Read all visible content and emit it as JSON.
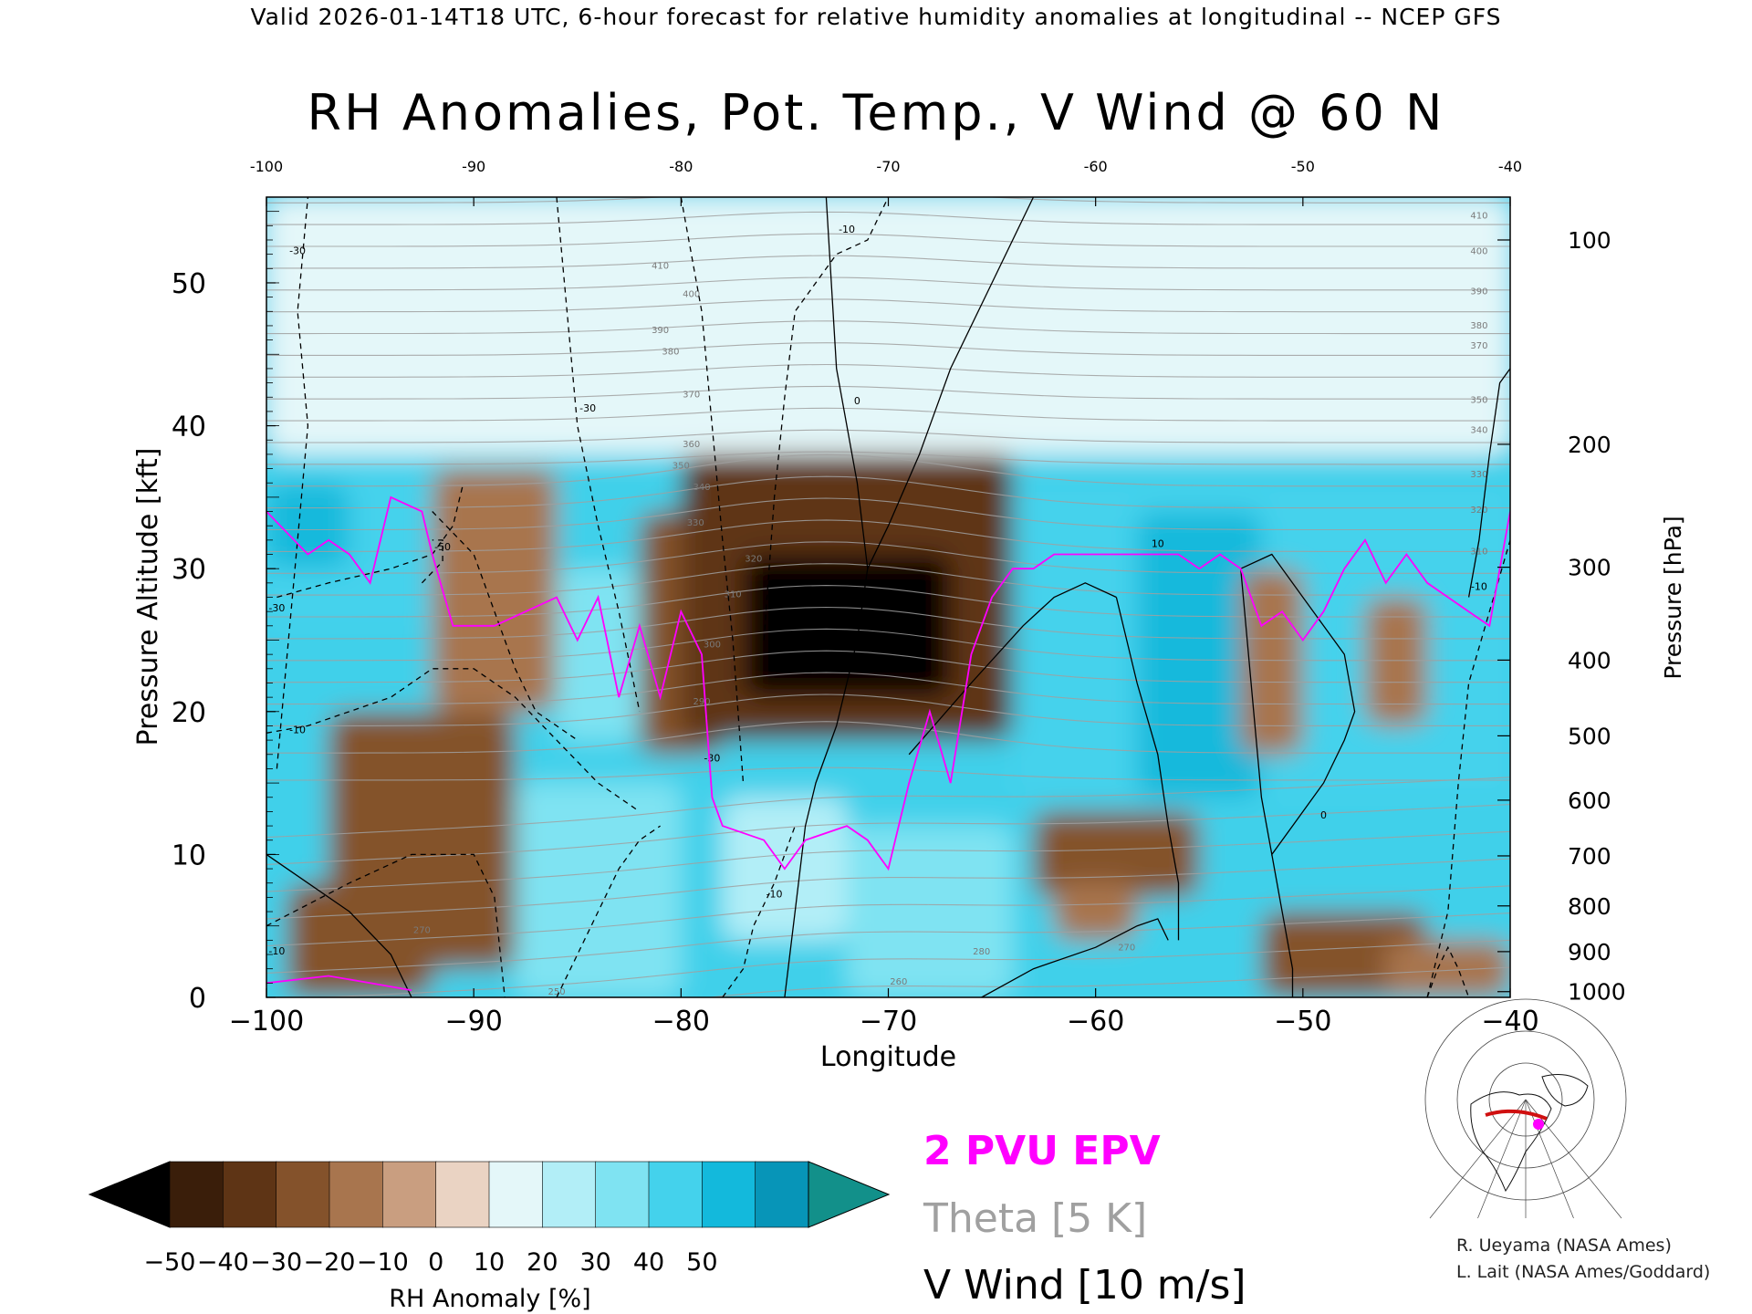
{
  "header": "Valid 2026-01-14T18 UTC, 6-hour forecast for relative humidity anomalies at longitudinal -- NCEP GFS",
  "chart_data": {
    "type": "heatmap",
    "title": "RH Anomalies, Pot. Temp., V Wind @ 60 N",
    "xlabel": "Longitude",
    "ylabel_left": "Pressure Altitude [kft]",
    "ylabel_right": "Pressure [hPa]",
    "xlim": [
      -100,
      -40
    ],
    "ylim": [
      0,
      56
    ],
    "x_ticks": [
      -100,
      -90,
      -80,
      -70,
      -60,
      -50,
      -40
    ],
    "x_tick_labels": [
      "−100",
      "−90",
      "−80",
      "−70",
      "−60",
      "−50",
      "−40"
    ],
    "top_tick_labels": [
      "-100",
      "-90",
      "-80",
      "-70",
      "-60",
      "-50",
      "-40"
    ],
    "y_ticks": [
      0,
      10,
      20,
      30,
      40,
      50
    ],
    "pressure_ticks": [
      {
        "label": "100",
        "alt": 53
      },
      {
        "label": "200",
        "alt": 38.7
      },
      {
        "label": "300",
        "alt": 30.1
      },
      {
        "label": "400",
        "alt": 23.6
      },
      {
        "label": "500",
        "alt": 18.3
      },
      {
        "label": "600",
        "alt": 13.8
      },
      {
        "label": "700",
        "alt": 9.9
      },
      {
        "label": "800",
        "alt": 6.4
      },
      {
        "label": "900",
        "alt": 3.2
      },
      {
        "label": "1000",
        "alt": 0.4
      }
    ],
    "colorbar": {
      "label": "RH Anomaly [%]",
      "tick_labels": [
        "−50",
        "−40",
        "−30",
        "−20",
        "−10",
        "0",
        "10",
        "20",
        "30",
        "40",
        "50"
      ],
      "colors": [
        "#3a1e0a",
        "#5e3415",
        "#84522b",
        "#a8754e",
        "#c99e80",
        "#ead3c3",
        "#e4f7f9",
        "#b2eef7",
        "#7fe3f2",
        "#44d2ec",
        "#13b9dc",
        "#0795b8"
      ],
      "under_color": "#000000",
      "over_color": "#12908a"
    },
    "legend": {
      "epv": "2 PVU EPV",
      "theta": "Theta [5 K]",
      "wind": "V Wind [10 m/s]",
      "epv_color": "#ff00ff",
      "theta_color": "#a0a0a0",
      "wind_color": "#000000"
    },
    "rh_regions": [
      {
        "x": [
          -100,
          -40
        ],
        "y": [
          38,
          56
        ],
        "value": 3
      },
      {
        "x": [
          -100,
          -92
        ],
        "y": [
          26,
          38
        ],
        "value": 30
      },
      {
        "x": [
          -100,
          -96
        ],
        "y": [
          30,
          36
        ],
        "value": 45
      },
      {
        "x": [
          -92,
          -86
        ],
        "y": [
          20,
          37
        ],
        "value": -15
      },
      {
        "x": [
          -86,
          -82
        ],
        "y": [
          18,
          30
        ],
        "value": 20
      },
      {
        "x": [
          -82,
          -78
        ],
        "y": [
          17,
          34
        ],
        "value": -25
      },
      {
        "x": [
          -80,
          -64
        ],
        "y": [
          18,
          38
        ],
        "value": -35
      },
      {
        "x": [
          -77,
          -67
        ],
        "y": [
          21,
          31
        ],
        "value": -55
      },
      {
        "x": [
          -97,
          -88
        ],
        "y": [
          2,
          20
        ],
        "value": -25
      },
      {
        "x": [
          -99,
          -92
        ],
        "y": [
          0,
          8
        ],
        "value": -30
      },
      {
        "x": [
          -88,
          -80
        ],
        "y": [
          0,
          15
        ],
        "value": 25
      },
      {
        "x": [
          -78,
          -72
        ],
        "y": [
          4,
          14
        ],
        "value": 15
      },
      {
        "x": [
          -72,
          -64
        ],
        "y": [
          0,
          12
        ],
        "value": 25
      },
      {
        "x": [
          -63,
          -55
        ],
        "y": [
          7,
          13
        ],
        "value": -25
      },
      {
        "x": [
          -62,
          -58
        ],
        "y": [
          4,
          8
        ],
        "value": -20
      },
      {
        "x": [
          -64,
          -40
        ],
        "y": [
          14,
          36
        ],
        "value": 35
      },
      {
        "x": [
          -58,
          -52
        ],
        "y": [
          14,
          34
        ],
        "value": 45
      },
      {
        "x": [
          -53,
          -50
        ],
        "y": [
          17,
          30
        ],
        "value": -15
      },
      {
        "x": [
          -47,
          -44
        ],
        "y": [
          19,
          28
        ],
        "value": -15
      },
      {
        "x": [
          -52,
          -44
        ],
        "y": [
          0,
          6
        ],
        "value": -25
      },
      {
        "x": [
          -46,
          -40
        ],
        "y": [
          0,
          4
        ],
        "value": -20
      }
    ],
    "epv_2pvu": {
      "x": [
        -100,
        -98,
        -97,
        -96,
        -95,
        -94,
        -92.5,
        -92,
        -91,
        -89,
        -86,
        -85,
        -84,
        -83,
        -82,
        -81,
        -80,
        -79,
        -78.5,
        -78,
        -76,
        -75,
        -74,
        -72,
        -71,
        -70,
        -69,
        -68,
        -67,
        -66,
        -65,
        -64,
        -63,
        -62,
        -60,
        -58,
        -56,
        -55,
        -54,
        -53,
        -52,
        -51,
        -50,
        -49,
        -48,
        -47,
        -46,
        -45,
        -44,
        -43,
        -42,
        -41,
        -40
      ],
      "y": [
        34,
        31,
        32,
        31,
        29,
        35,
        34,
        31,
        26,
        26,
        28,
        25,
        28,
        21,
        26,
        21,
        27,
        24,
        14,
        12,
        11,
        9,
        11,
        12,
        11,
        9,
        15,
        20,
        15,
        24,
        28,
        30,
        30,
        31,
        31,
        31,
        31,
        30,
        31,
        30,
        26,
        27,
        25,
        27,
        30,
        32,
        29,
        31,
        29,
        28,
        27,
        26,
        34
      ]
    },
    "epv_surface": {
      "x": [
        -100,
        -97,
        -95,
        -93
      ],
      "y": [
        1,
        1.5,
        1,
        0.5
      ]
    },
    "theta_levels": [
      250,
      255,
      260,
      265,
      270,
      275,
      280,
      285,
      290,
      295,
      300,
      305,
      310,
      315,
      320,
      325,
      330,
      335,
      340,
      345,
      350,
      355,
      360,
      365,
      370,
      375,
      380,
      385,
      390,
      395,
      400,
      405,
      410,
      415,
      420,
      425
    ],
    "theta_labels": [
      {
        "text": "410",
        "x": -41.5,
        "y": 54.5
      },
      {
        "text": "400",
        "x": -41.5,
        "y": 52
      },
      {
        "text": "390",
        "x": -41.5,
        "y": 49.2
      },
      {
        "text": "380",
        "x": -41.5,
        "y": 46.8
      },
      {
        "text": "370",
        "x": -41.5,
        "y": 45.4
      },
      {
        "text": "350",
        "x": -41.5,
        "y": 41.6
      },
      {
        "text": "340",
        "x": -41.5,
        "y": 39.5
      },
      {
        "text": "330",
        "x": -41.5,
        "y": 36.4
      },
      {
        "text": "320",
        "x": -41.5,
        "y": 33.9
      },
      {
        "text": "310",
        "x": -41.5,
        "y": 31
      },
      {
        "text": "410",
        "x": -81,
        "y": 51
      },
      {
        "text": "400",
        "x": -79.5,
        "y": 49
      },
      {
        "text": "390",
        "x": -81,
        "y": 46.5
      },
      {
        "text": "380",
        "x": -80.5,
        "y": 45
      },
      {
        "text": "370",
        "x": -79.5,
        "y": 42
      },
      {
        "text": "360",
        "x": -79.5,
        "y": 38.5
      },
      {
        "text": "350",
        "x": -80,
        "y": 37
      },
      {
        "text": "340",
        "x": -79,
        "y": 35.5
      },
      {
        "text": "330",
        "x": -79.3,
        "y": 33
      },
      {
        "text": "320",
        "x": -76.5,
        "y": 30.5
      },
      {
        "text": "310",
        "x": -77.5,
        "y": 28
      },
      {
        "text": "300",
        "x": -78.5,
        "y": 24.5
      },
      {
        "text": "290",
        "x": -79,
        "y": 20.5
      },
      {
        "text": "280",
        "x": -65.5,
        "y": 3
      },
      {
        "text": "270",
        "x": -92.5,
        "y": 4.5
      },
      {
        "text": "270",
        "x": -58.5,
        "y": 3.3
      },
      {
        "text": "260",
        "x": -69.5,
        "y": 0.9
      },
      {
        "text": "250",
        "x": -86,
        "y": 0.2
      }
    ],
    "wind_contours": [
      {
        "value": "0",
        "style": "solid",
        "x": [
          -75,
          -74.5,
          -74,
          -73.5,
          -72.5,
          -71.5,
          -71,
          -71.5,
          -72.5,
          -73
        ],
        "y": [
          0,
          6,
          12,
          15,
          19,
          25,
          30,
          36,
          44,
          56
        ],
        "label": {
          "x": -71.5,
          "y": 41.5
        }
      },
      {
        "value": "0",
        "style": "solid",
        "x": [
          -71,
          -70,
          -68.5,
          -67,
          -65,
          -63
        ],
        "y": [
          30,
          33,
          38,
          44,
          50,
          56
        ]
      },
      {
        "value": "10",
        "style": "solid",
        "x": [
          -69,
          -66,
          -63.5,
          -62,
          -60.5,
          -59
        ],
        "y": [
          17,
          22,
          26,
          28,
          29,
          28
        ]
      },
      {
        "value": "10",
        "style": "solid",
        "x": [
          -59,
          -58,
          -57,
          -56.5,
          -56,
          -56
        ],
        "y": [
          28,
          22,
          17,
          12,
          8,
          4
        ],
        "label": {
          "x": -57,
          "y": 31.5
        }
      },
      {
        "value": "0",
        "style": "solid",
        "x": [
          -53,
          -51.5,
          -50,
          -49,
          -48,
          -47.5,
          -48,
          -49,
          -50.5,
          -51.5,
          -52,
          -53
        ],
        "y": [
          30,
          31,
          28,
          26,
          24,
          20,
          18,
          15,
          12,
          10,
          14,
          30
        ],
        "label": {
          "x": -49,
          "y": 12.5
        }
      },
      {
        "value": "0",
        "style": "solid",
        "x": [
          -51.5,
          -51,
          -50.5,
          -50.5
        ],
        "y": [
          10,
          6,
          2,
          0
        ]
      },
      {
        "value": "0",
        "style": "solid",
        "x": [
          -65.5,
          -63,
          -60,
          -58,
          -57,
          -56.5
        ],
        "y": [
          0,
          2,
          3.5,
          5,
          5.5,
          4
        ]
      },
      {
        "value": "0",
        "style": "solid",
        "x": [
          -42,
          -41.5,
          -41,
          -40.5,
          -40
        ],
        "y": [
          28,
          32,
          38,
          43,
          44
        ]
      },
      {
        "value": "0",
        "style": "solid",
        "x": [
          -100,
          -98,
          -96,
          -94,
          -93
        ],
        "y": [
          10,
          8,
          6,
          3,
          0
        ]
      },
      {
        "value": "-30",
        "style": "dashed",
        "x": [
          -99.5,
          -99,
          -98.5,
          -98,
          -98.5,
          -98
        ],
        "y": [
          16,
          24,
          32,
          40,
          48,
          56
        ],
        "label": {
          "x": -98.5,
          "y": 52
        }
      },
      {
        "value": "-30",
        "style": "dashed",
        "x": [
          -99.5,
          -97,
          -94,
          -92,
          -91,
          -90.5
        ],
        "y": [
          28,
          29,
          30,
          31,
          33,
          36
        ],
        "label": {
          "x": -99.5,
          "y": 27
        }
      },
      {
        "value": "-50",
        "style": "dashed",
        "x": [
          -92.5,
          -91.5,
          -91.5,
          -92
        ],
        "y": [
          29,
          30.5,
          32,
          32
        ],
        "label": {
          "x": -91.5,
          "y": 31.3
        }
      },
      {
        "value": "-30",
        "style": "dashed",
        "x": [
          -92,
          -90,
          -89,
          -88,
          -87,
          -85
        ],
        "y": [
          34,
          31,
          27,
          23,
          20,
          18
        ]
      },
      {
        "value": "-10",
        "style": "dashed",
        "x": [
          -100,
          -98,
          -96,
          -94,
          -92,
          -90,
          -88,
          -86,
          -84,
          -82
        ],
        "y": [
          18.5,
          19,
          20,
          21,
          23,
          23,
          21,
          18,
          15,
          13
        ],
        "label": {
          "x": -98.5,
          "y": 18.5
        }
      },
      {
        "value": "-30",
        "style": "dashed",
        "x": [
          -86,
          -85.5,
          -85,
          -84,
          -83,
          -82
        ],
        "y": [
          56,
          48,
          40,
          33,
          27,
          20
        ],
        "label": {
          "x": -84.5,
          "y": 41
        }
      },
      {
        "value": "-30",
        "style": "dashed",
        "x": [
          -80,
          -79,
          -78.5,
          -78,
          -77.5,
          -77
        ],
        "y": [
          56,
          48,
          40,
          32,
          25,
          15
        ],
        "label": {
          "x": -78.5,
          "y": 16.5
        }
      },
      {
        "value": "-10",
        "style": "dashed",
        "x": [
          -76,
          -75.5,
          -75,
          -74.5,
          -72.5,
          -71,
          -70
        ],
        "y": [
          25,
          35,
          42,
          48,
          52,
          53,
          56
        ],
        "label": {
          "x": -72,
          "y": 53.5
        }
      },
      {
        "value": "-10",
        "style": "dashed",
        "x": [
          -100,
          -96,
          -93,
          -90,
          -89,
          -88.5
        ],
        "y": [
          5,
          8,
          10,
          10,
          7,
          0
        ],
        "label": {
          "x": -99.5,
          "y": 3
        }
      },
      {
        "value": "-10",
        "style": "dashed",
        "x": [
          -86,
          -85,
          -84,
          -83,
          -82,
          -81
        ],
        "y": [
          0,
          3,
          6,
          9,
          11,
          12
        ]
      },
      {
        "value": "-10",
        "style": "dashed",
        "x": [
          -78,
          -77,
          -76.5,
          -75.5,
          -74.5
        ],
        "y": [
          0,
          2,
          5,
          8,
          12
        ],
        "label": {
          "x": -75.5,
          "y": 7
        }
      },
      {
        "value": "-10",
        "style": "dashed",
        "x": [
          -44,
          -43,
          -42.5,
          -42,
          -41,
          -40
        ],
        "y": [
          0,
          6,
          15,
          22,
          27,
          32
        ],
        "label": {
          "x": -41.5,
          "y": 28.5
        }
      },
      {
        "value": "-10",
        "style": "dashed",
        "x": [
          -44,
          -43.5,
          -43,
          -42.5,
          -42
        ],
        "y": [
          0,
          2,
          3.5,
          2,
          0
        ]
      }
    ]
  },
  "credits": [
    "R. Ueyama (NASA Ames)",
    "L. Lait (NASA Ames/Goddard)"
  ]
}
